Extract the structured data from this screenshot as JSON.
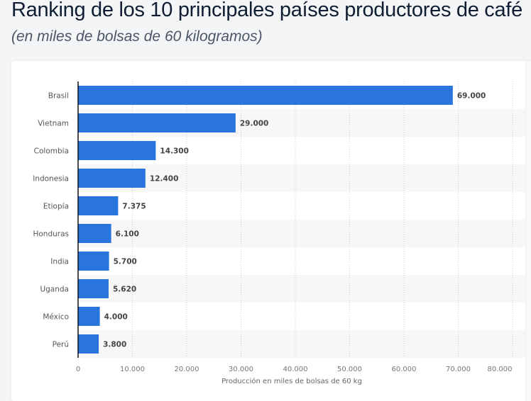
{
  "header": {
    "title": "Ranking de los 10 principales países productores de café",
    "subtitle": "(en miles de bolsas de 60 kilogramos)"
  },
  "chart_data": {
    "type": "bar",
    "orientation": "horizontal",
    "categories": [
      "Brasil",
      "Vietnam",
      "Colombia",
      "Indonesia",
      "Etiopía",
      "Honduras",
      "India",
      "Uganda",
      "México",
      "Perú"
    ],
    "values": [
      69000,
      29000,
      14300,
      12400,
      7375,
      6100,
      5700,
      5620,
      4000,
      3800
    ],
    "data_labels": [
      "69.000",
      "29.000",
      "14.300",
      "12.400",
      "7.375",
      "6.100",
      "5.700",
      "5.620",
      "4.000",
      "3.800"
    ],
    "xlabel": "Producción en miles de bolsas de 60 kg",
    "ylabel": "",
    "xlim": [
      0,
      80000
    ],
    "x_ticks": [
      0,
      10000,
      20000,
      30000,
      40000,
      50000,
      60000,
      70000,
      80000
    ],
    "x_tick_labels": [
      "0",
      "10.000",
      "20.000",
      "30.000",
      "40.000",
      "50.000",
      "60.000",
      "70.000",
      "80.000"
    ],
    "grid": "vertical dotted",
    "bar_color": "#2a75dd",
    "stripe_color": "#f7f7f7"
  }
}
